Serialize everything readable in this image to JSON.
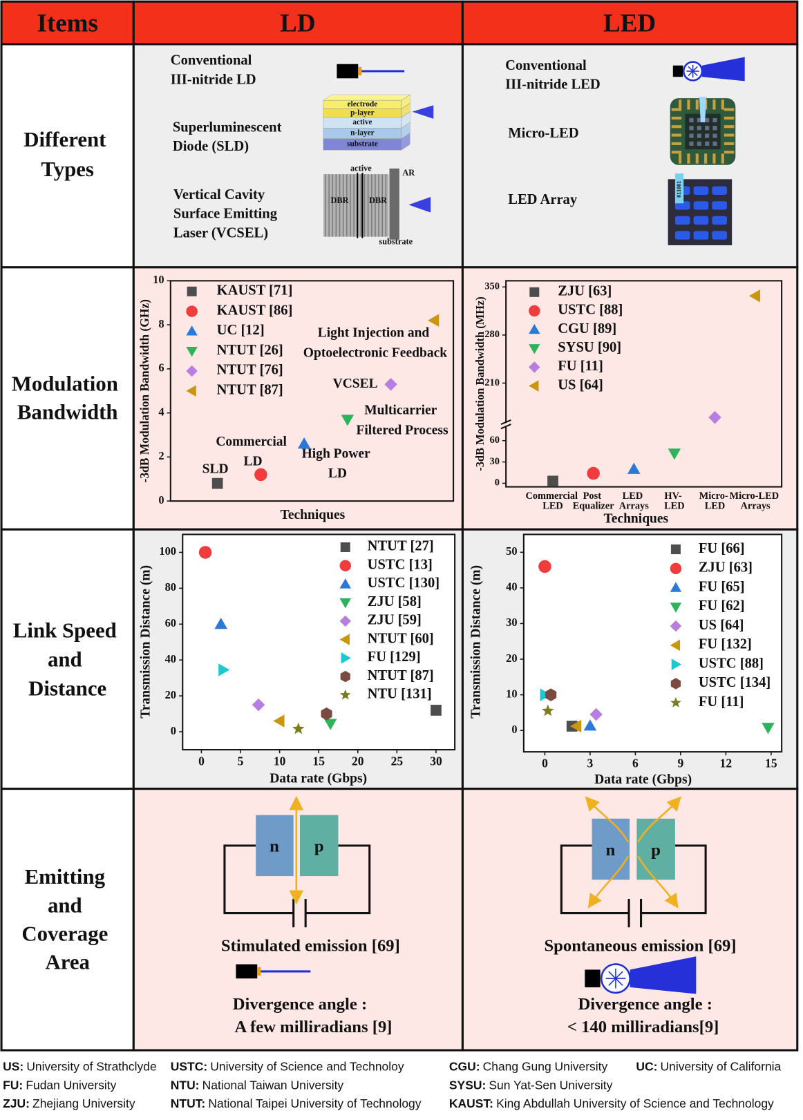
{
  "table": {
    "header": [
      "Items",
      "LD",
      "LED"
    ],
    "row_labels": [
      "Different\nTypes",
      "Modulation\nBandwidth",
      "Link Speed\nand\nDistance",
      "Emitting\nand\nCoverage\nArea"
    ],
    "types": {
      "ld": [
        {
          "name": "Conventional\nIII-nitride LD"
        },
        {
          "name": "Superluminescent\nDiode (SLD)",
          "layers": [
            "electrode",
            "p-layer",
            "active",
            "n-layer",
            "substrate"
          ]
        },
        {
          "name": "Vertical Cavity\nSurface Emitting\nLaser (VCSEL)",
          "labels": [
            "active",
            "DBR",
            "DBR",
            "AR",
            "substrate"
          ]
        }
      ],
      "led": [
        {
          "name": "Conventional\nIII-nitride LED"
        },
        {
          "name": "Micro-LED"
        },
        {
          "name": "LED Array",
          "code": "011001"
        }
      ]
    },
    "emission": {
      "ld": {
        "n": "n",
        "p": "p",
        "caption": "Stimulated emission [69]",
        "divergence": "Divergence angle :",
        "angle": "A few milliradians [9]"
      },
      "led": {
        "n": "n",
        "p": "p",
        "caption": "Spontaneous emission [69]",
        "divergence": "Divergence angle :",
        "angle": "< 140 milliradians[9]"
      }
    }
  },
  "chart_data": [
    {
      "type": "scatter",
      "ylabel": "-3dB Modulation Bandwidth (GHz)",
      "xlabel": "Techniques",
      "categories": [
        null,
        null,
        null,
        null,
        null,
        null
      ],
      "ylim": [
        0,
        10
      ],
      "yticks": [
        0,
        2,
        4,
        6,
        8,
        10
      ],
      "series": [
        {
          "name": "KAUST [71]",
          "color": "#4d4d4d",
          "marker": "square",
          "values": [
            0.8,
            null,
            null,
            null,
            null,
            null
          ]
        },
        {
          "name": "KAUST [86]",
          "color": "#f03c3c",
          "marker": "circle",
          "values": [
            null,
            1.2,
            null,
            null,
            null,
            null
          ]
        },
        {
          "name": "UC [12]",
          "color": "#2a78d8",
          "marker": "triangle-up",
          "values": [
            null,
            null,
            2.6,
            null,
            null,
            null
          ]
        },
        {
          "name": "NTUT [26]",
          "color": "#2eb35a",
          "marker": "triangle-down",
          "values": [
            null,
            null,
            null,
            3.7,
            null,
            null
          ]
        },
        {
          "name": "NTUT [76]",
          "color": "#b87de0",
          "marker": "diamond",
          "values": [
            null,
            null,
            null,
            null,
            5.3,
            null
          ]
        },
        {
          "name": "NTUT [87]",
          "color": "#c9960e",
          "marker": "triangle-left",
          "values": [
            null,
            null,
            null,
            null,
            null,
            8.2
          ]
        }
      ],
      "annotations": [
        "SLD",
        "Commercial\nLD",
        "High Power\nLD",
        "Multicarrier\nFiltered Process",
        "VCSEL",
        "Light Injection and\nOptoelectronic Feedback"
      ]
    },
    {
      "type": "scatter",
      "ylabel": "-3dB Modulation Bandwidth (MHz)",
      "xlabel": "Techniques",
      "categories": [
        "Commercial\nLED",
        "Post\nEqualizer",
        "LED\nArrays",
        "HV-\nLED",
        "Micro-\nLED",
        "Micro-LED\nArrays"
      ],
      "broken_y": [
        {
          "ylim": [
            -5,
            82
          ],
          "yticks": [
            0,
            30,
            60
          ]
        },
        {
          "ylim": [
            149,
            359
          ],
          "yticks": [
            210,
            280,
            350
          ]
        }
      ],
      "series": [
        {
          "name": "ZJU [63]",
          "color": "#4d4d4d",
          "marker": "square",
          "values": [
            3,
            null,
            null,
            null,
            null,
            null
          ]
        },
        {
          "name": "USTC [88]",
          "color": "#f03c3c",
          "marker": "circle",
          "values": [
            null,
            14,
            null,
            null,
            null,
            null
          ]
        },
        {
          "name": "CGU [89]",
          "color": "#2a78d8",
          "marker": "triangle-up",
          "values": [
            null,
            null,
            20,
            null,
            null,
            null
          ]
        },
        {
          "name": "SYSU [90]",
          "color": "#2eb35a",
          "marker": "triangle-down",
          "values": [
            null,
            null,
            null,
            42,
            null,
            null
          ]
        },
        {
          "name": "FU [11]",
          "color": "#b87de0",
          "marker": "diamond",
          "values": [
            null,
            null,
            null,
            null,
            160,
            null
          ]
        },
        {
          "name": "US [64]",
          "color": "#c9960e",
          "marker": "triangle-left",
          "values": [
            null,
            null,
            null,
            null,
            null,
            337
          ]
        }
      ]
    },
    {
      "type": "scatter",
      "xlabel": "Data rate (Gbps)",
      "ylabel": "Transmission Distance (m)",
      "xlim": [
        -2.4,
        32.4
      ],
      "xticks": [
        0,
        5,
        10,
        15,
        20,
        25,
        30
      ],
      "ylim": [
        -10,
        110
      ],
      "yticks": [
        0,
        20,
        40,
        60,
        80,
        100
      ],
      "series": [
        {
          "name": "NTUT [27]",
          "color": "#4d4d4d",
          "marker": "square",
          "x": [
            30
          ],
          "values": [
            12
          ]
        },
        {
          "name": "USTC [13]",
          "color": "#f03c3c",
          "marker": "circle",
          "x": [
            0.5
          ],
          "values": [
            100
          ]
        },
        {
          "name": "USTC [130]",
          "color": "#2a78d8",
          "marker": "triangle-up",
          "x": [
            2.5
          ],
          "values": [
            60
          ]
        },
        {
          "name": "ZJU [58]",
          "color": "#2eb35a",
          "marker": "triangle-down",
          "x": [
            16.5
          ],
          "values": [
            4.5
          ]
        },
        {
          "name": "ZJU [59]",
          "color": "#b87de0",
          "marker": "diamond",
          "x": [
            7.3
          ],
          "values": [
            15
          ]
        },
        {
          "name": "NTUT [60]",
          "color": "#c9960e",
          "marker": "triangle-left",
          "x": [
            10
          ],
          "values": [
            6
          ]
        },
        {
          "name": "FU [129]",
          "color": "#1ec8d0",
          "marker": "triangle-right",
          "x": [
            2.8
          ],
          "values": [
            34.5
          ]
        },
        {
          "name": "NTUT [87]",
          "color": "#7a4a40",
          "marker": "hexagon",
          "x": [
            16
          ],
          "values": [
            10
          ]
        },
        {
          "name": "NTU [131]",
          "color": "#7a7a20",
          "marker": "star",
          "x": [
            12.4
          ],
          "values": [
            1.6
          ]
        }
      ]
    },
    {
      "type": "scatter",
      "xlabel": "Data rate (Gbps)",
      "ylabel": "Transmission Distance (m)",
      "xlim": [
        -1.4,
        15.7
      ],
      "xticks": [
        0,
        3,
        6,
        9,
        12,
        15
      ],
      "ylim": [
        -6,
        55
      ],
      "yticks": [
        0,
        10,
        20,
        30,
        40,
        50
      ],
      "series": [
        {
          "name": "FU [66]",
          "color": "#4d4d4d",
          "marker": "square",
          "x": [
            1.8
          ],
          "values": [
            1.2
          ]
        },
        {
          "name": "ZJU [63]",
          "color": "#f03c3c",
          "marker": "circle",
          "x": [
            0
          ],
          "values": [
            46
          ]
        },
        {
          "name": "FU [65]",
          "color": "#2a78d8",
          "marker": "triangle-up",
          "x": [
            3
          ],
          "values": [
            1.3
          ]
        },
        {
          "name": "FU [62]",
          "color": "#2eb35a",
          "marker": "triangle-down",
          "x": [
            14.8
          ],
          "values": [
            0.8
          ]
        },
        {
          "name": "US [64]",
          "color": "#b87de0",
          "marker": "diamond",
          "x": [
            3.4
          ],
          "values": [
            4.5
          ]
        },
        {
          "name": "FU [132]",
          "color": "#c9960e",
          "marker": "triangle-left",
          "x": [
            2.1
          ],
          "values": [
            1.2
          ]
        },
        {
          "name": "USTC [88]",
          "color": "#1ec8d0",
          "marker": "triangle-right",
          "x": [
            0
          ],
          "values": [
            10
          ]
        },
        {
          "name": "USTC [134]",
          "color": "#7a4a40",
          "marker": "hexagon",
          "x": [
            0.4
          ],
          "values": [
            10
          ]
        },
        {
          "name": "FU [11]",
          "color": "#7a7a20",
          "marker": "star",
          "x": [
            0.2
          ],
          "values": [
            5.5
          ]
        }
      ]
    }
  ],
  "footnotes": [
    {
      "abbr": "US:",
      "name": "University of Strathclyde"
    },
    {
      "abbr": "USTC:",
      "name": "University of Science and Technoloy"
    },
    {
      "abbr": "CGU:",
      "name": "Chang Gung University"
    },
    {
      "abbr": "UC:",
      "name": "University of California"
    },
    {
      "abbr": "FU:",
      "name": "Fudan University"
    },
    {
      "abbr": "NTU:",
      "name": "National Taiwan University"
    },
    {
      "abbr": "SYSU:",
      "name": "Sun Yat-Sen University"
    },
    {
      "abbr": "ZJU:",
      "name": "Zhejiang University"
    },
    {
      "abbr": "NTUT:",
      "name": "National Taipei University of Technology"
    },
    {
      "abbr": "KAUST:",
      "name": "King Abdullah University of Science and Technology"
    }
  ]
}
